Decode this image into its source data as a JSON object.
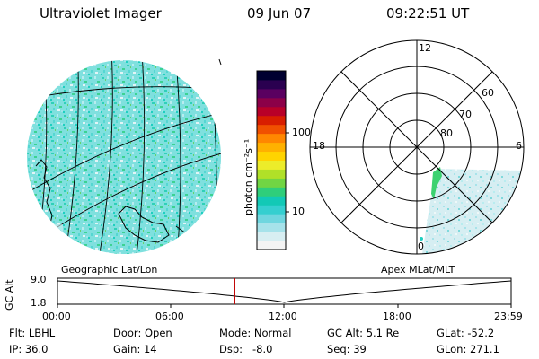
{
  "header": {
    "title": "Ultraviolet Imager",
    "date": "09 Jun 07",
    "time": "09:22:51 UT"
  },
  "colorbar": {
    "label": "photon cm⁻²s⁻¹",
    "tick_100": "100",
    "tick_10": "10",
    "colors": [
      "#f4f4f4",
      "#d7eef2",
      "#a6e2ea",
      "#6fd6df",
      "#35cfd0",
      "#12c9b6",
      "#2fce7a",
      "#71d543",
      "#b0e028",
      "#ecec2a",
      "#ffd400",
      "#ffb100",
      "#ff8700",
      "#f05000",
      "#d81e00",
      "#b80028",
      "#8c0048",
      "#5a0060",
      "#2a0050",
      "#000030"
    ]
  },
  "polar": {
    "mlt_labels": {
      "top": "12",
      "left": "18",
      "right": "6",
      "bottom": "0"
    },
    "lat_labels": [
      "60",
      "70",
      "80"
    ]
  },
  "geo_label": "Geographic Lat/Lon",
  "apex_label": "Apex MLat/MLT",
  "gc_alt": {
    "axis_label": "GC Alt",
    "y_top": "9.0",
    "y_bottom": "1.8",
    "time_ticks": [
      "00:00",
      "06:00",
      "12:00",
      "18:00",
      "23:59"
    ],
    "current_hour": 9.38
  },
  "info": {
    "filter": "Flt: LBHL",
    "ip": "IP: 36.0",
    "door": "Door: Open",
    "gain": "Gain: 14",
    "mode": "Mode: Normal",
    "dsp": "Dsp:   -8.0",
    "gcalt": "GC Alt: 5.1 Re",
    "seq": "Seq: 39",
    "glat": "GLat: -52.2",
    "glon": "GLon: 271.1"
  }
}
